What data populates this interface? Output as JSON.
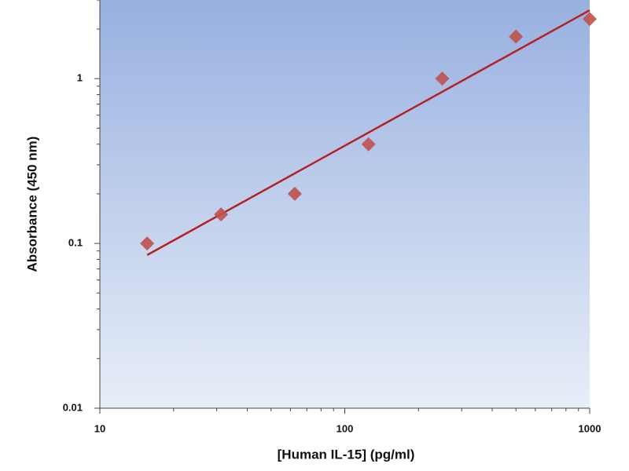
{
  "chart_data": {
    "type": "scatter",
    "x_label": "[Human IL-15] (pg/ml)",
    "y_label": "Absorbance (450 nm)",
    "x": [
      15.6,
      31.25,
      62.5,
      125,
      250,
      500,
      1000
    ],
    "values": [
      0.1,
      0.15,
      0.2,
      0.4,
      1.0,
      1.8,
      2.3
    ],
    "color": "#c0504d",
    "fit": {
      "x": [
        15.6,
        1000
      ],
      "y": [
        0.085,
        2.6
      ],
      "color": "#b52025"
    },
    "xlim": [
      10,
      1000
    ],
    "ylim": [
      0.01,
      3
    ],
    "xticks": [
      10,
      100,
      1000
    ],
    "yticks": [
      0.01,
      0.1,
      1
    ],
    "xminorticks": [
      20,
      30,
      40,
      50,
      60,
      70,
      80,
      90,
      200,
      300,
      400,
      500,
      600,
      700,
      800,
      900
    ],
    "yminorticks": [
      0.02,
      0.03,
      0.04,
      0.05,
      0.06,
      0.07,
      0.08,
      0.09,
      0.2,
      0.3,
      0.4,
      0.5,
      0.6,
      0.7,
      0.8,
      0.9,
      2,
      3
    ],
    "log_x": true,
    "log_y": true
  }
}
